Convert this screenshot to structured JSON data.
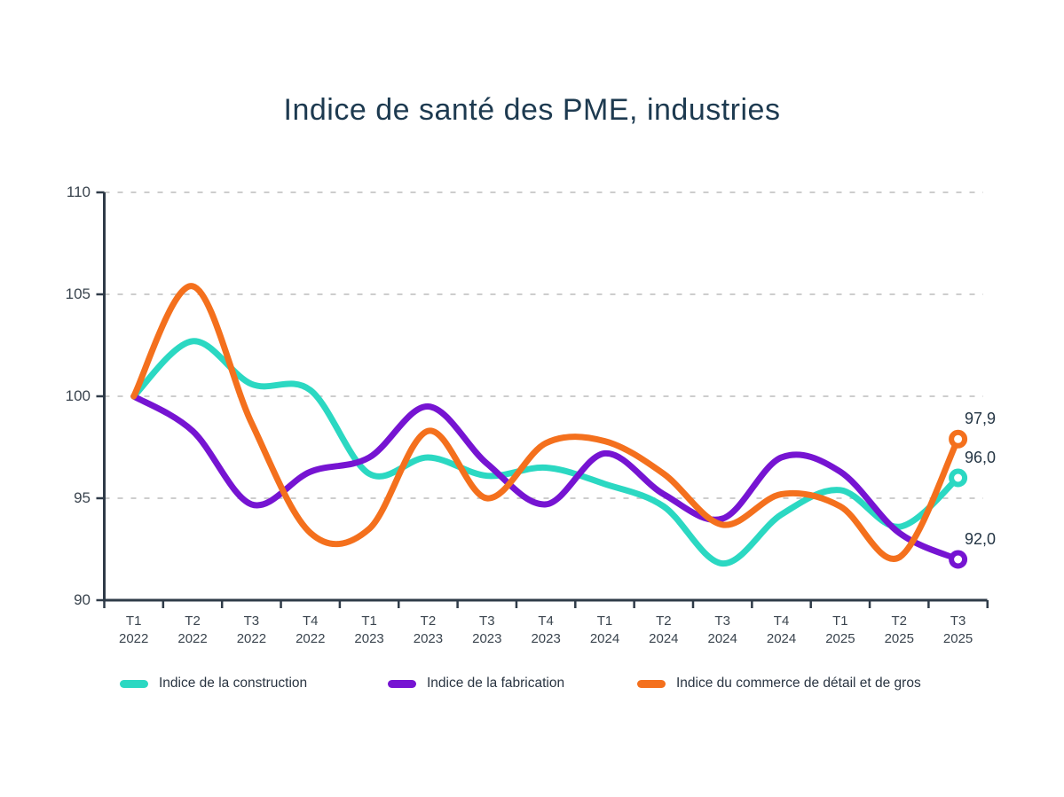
{
  "title": "Indice de santé des PME, industries",
  "chart_data": {
    "type": "line",
    "categories": [
      {
        "quarter": "T1",
        "year": "2022"
      },
      {
        "quarter": "T2",
        "year": "2022"
      },
      {
        "quarter": "T3",
        "year": "2022"
      },
      {
        "quarter": "T4",
        "year": "2022"
      },
      {
        "quarter": "T1",
        "year": "2023"
      },
      {
        "quarter": "T2",
        "year": "2023"
      },
      {
        "quarter": "T3",
        "year": "2023"
      },
      {
        "quarter": "T4",
        "year": "2023"
      },
      {
        "quarter": "T1",
        "year": "2024"
      },
      {
        "quarter": "T2",
        "year": "2024"
      },
      {
        "quarter": "T3",
        "year": "2024"
      },
      {
        "quarter": "T4",
        "year": "2024"
      },
      {
        "quarter": "T1",
        "year": "2025"
      },
      {
        "quarter": "T2",
        "year": "2025"
      },
      {
        "quarter": "T3",
        "year": "2025"
      }
    ],
    "series": [
      {
        "name": "Indice de la construction",
        "color": "#2bd8c2",
        "values": [
          100,
          102.7,
          100.6,
          100.3,
          96.2,
          97.0,
          96.1,
          96.5,
          95.7,
          94.6,
          91.8,
          94.2,
          95.4,
          93.6,
          96.0
        ],
        "end_label": "96,0"
      },
      {
        "name": "Indice de la fabrication",
        "color": "#7614d2",
        "values": [
          100,
          98.3,
          94.7,
          96.3,
          97.0,
          99.5,
          96.7,
          94.7,
          97.2,
          95.2,
          94.0,
          97.0,
          96.3,
          93.3,
          92.0
        ],
        "end_label": "92,0"
      },
      {
        "name": "Indice du commerce de détail et de gros",
        "color": "#f4701d",
        "values": [
          100,
          105.4,
          98.7,
          93.3,
          93.5,
          98.3,
          95.0,
          97.7,
          97.8,
          96.2,
          93.7,
          95.2,
          94.6,
          92.1,
          97.9
        ],
        "end_label": "97,9"
      }
    ],
    "ylim": [
      90,
      110
    ],
    "yticks": [
      "110",
      "105",
      "100",
      "95",
      "90"
    ],
    "ytick_values": [
      110,
      105,
      100,
      95,
      90
    ],
    "grid": "dashed horizontal",
    "legend_position": "bottom"
  },
  "colors": {
    "title_text": "#1d3a50",
    "axis_line": "#2f3b48",
    "tick_label_text": "#3a444e",
    "grid_line": "#cdcdcd",
    "end_label_text": "#243544",
    "background": "#ffffff"
  }
}
